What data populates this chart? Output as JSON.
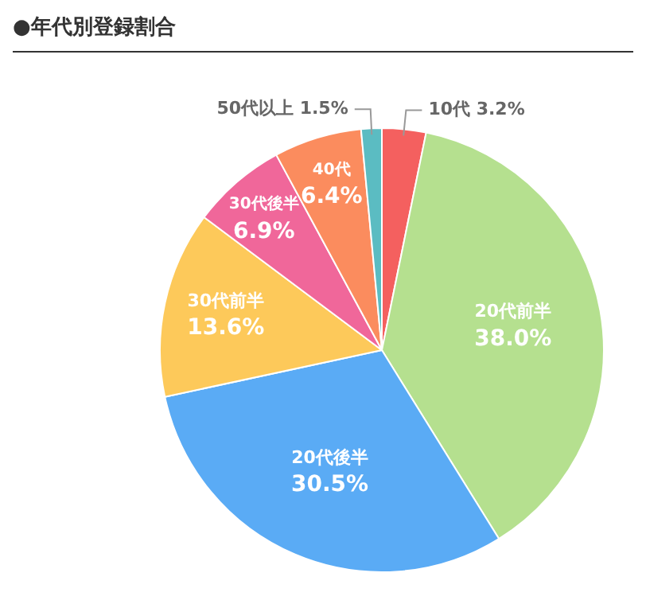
{
  "chart_data": {
    "type": "pie",
    "title": "●年代別登録割合",
    "categories": [
      "10代",
      "20代前半",
      "20代後半",
      "30代前半",
      "30代後半",
      "40代",
      "50代以上"
    ],
    "values": [
      3.2,
      38.0,
      30.5,
      13.6,
      6.9,
      6.4,
      1.5
    ],
    "value_labels": [
      "3.2%",
      "38.0%",
      "30.5%",
      "13.6%",
      "6.9%",
      "6.4%",
      "1.5%"
    ],
    "colors": [
      "#f4605f",
      "#b5e08f",
      "#5aabf5",
      "#fdc95a",
      "#f0679a",
      "#fb8c5e",
      "#5bbcc2"
    ],
    "legend": false
  }
}
